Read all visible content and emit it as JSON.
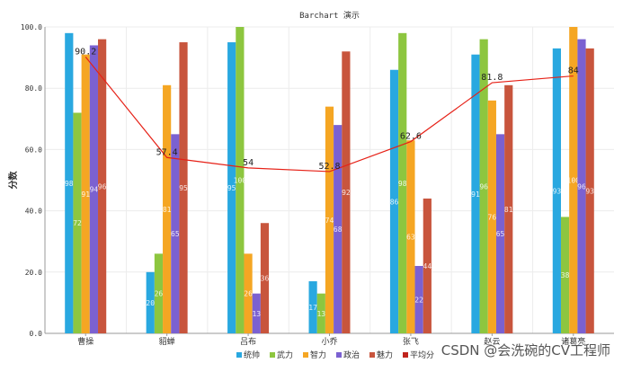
{
  "chart_data": {
    "type": "bar",
    "title": "Barchart 演示",
    "xlabel": "",
    "ylabel": "分数",
    "ylim": [
      0,
      100
    ],
    "yticks": [
      "0.0",
      "20.0",
      "40.0",
      "60.0",
      "80.0",
      "100.0"
    ],
    "categories": [
      "曹操",
      "貂蝉",
      "吕布",
      "小乔",
      "张飞",
      "赵云",
      "诸葛亮"
    ],
    "series": [
      {
        "name": "统帅",
        "color": "#29a8e0",
        "values": [
          98,
          20,
          95,
          17,
          86,
          91,
          93
        ]
      },
      {
        "name": "武力",
        "color": "#8dc63f",
        "values": [
          72,
          26,
          100,
          13,
          98,
          96,
          38
        ]
      },
      {
        "name": "智力",
        "color": "#f5a623",
        "values": [
          91,
          81,
          26,
          74,
          63,
          76,
          100
        ]
      },
      {
        "name": "政治",
        "color": "#7b61d1",
        "values": [
          94,
          65,
          13,
          68,
          22,
          65,
          96
        ]
      },
      {
        "name": "魅力",
        "color": "#c8553d",
        "values": [
          96,
          95,
          36,
          92,
          44,
          81,
          93
        ]
      }
    ],
    "line_series": {
      "name": "平均分",
      "color": "#e62117",
      "values": [
        90.2,
        57.4,
        54,
        52.8,
        62.6,
        81.8,
        84
      ],
      "labels": [
        "90.2",
        "57.4",
        "54",
        "52.8",
        "62.6",
        "81.8",
        "84"
      ]
    },
    "legend_position": "bottom",
    "grid": true
  },
  "watermark": "CSDN @会洗碗的CV工程师"
}
